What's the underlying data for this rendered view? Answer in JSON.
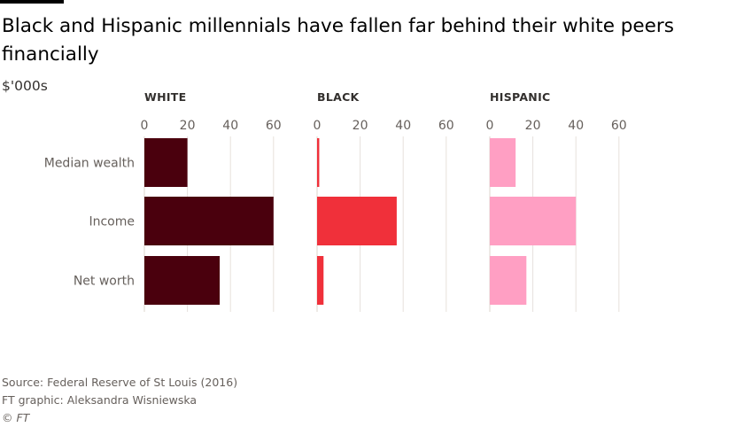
{
  "title": "Black and Hispanic millennials have fallen far behind their white peers financially",
  "subtitle": "$'000s",
  "footer": {
    "source": "Source: Federal Reserve of St Louis (2016)",
    "graphic": "FT graphic: Aleksandra Wisniewska",
    "copyright": "© FT"
  },
  "colors": {
    "background": "#ffffff",
    "white_bars": "#4a000d",
    "black_bars": "#f0303a",
    "hispanic_bars": "#ff9fc3",
    "grid": "#e6e0dc",
    "text": "#33302e"
  },
  "chart_data": {
    "type": "bar",
    "orientation": "horizontal",
    "categories": [
      "Median wealth",
      "Income",
      "Net worth"
    ],
    "xlim": [
      0,
      60
    ],
    "ticks": [
      0,
      20,
      40,
      60
    ],
    "grid": true,
    "series": [
      {
        "name": "WHITE",
        "values": [
          20,
          60,
          35
        ],
        "color": "#4a000d"
      },
      {
        "name": "BLACK",
        "values": [
          1,
          37,
          3
        ],
        "color": "#f0303a"
      },
      {
        "name": "HISPANIC",
        "values": [
          12,
          40,
          17
        ],
        "color": "#ff9fc3"
      }
    ]
  }
}
